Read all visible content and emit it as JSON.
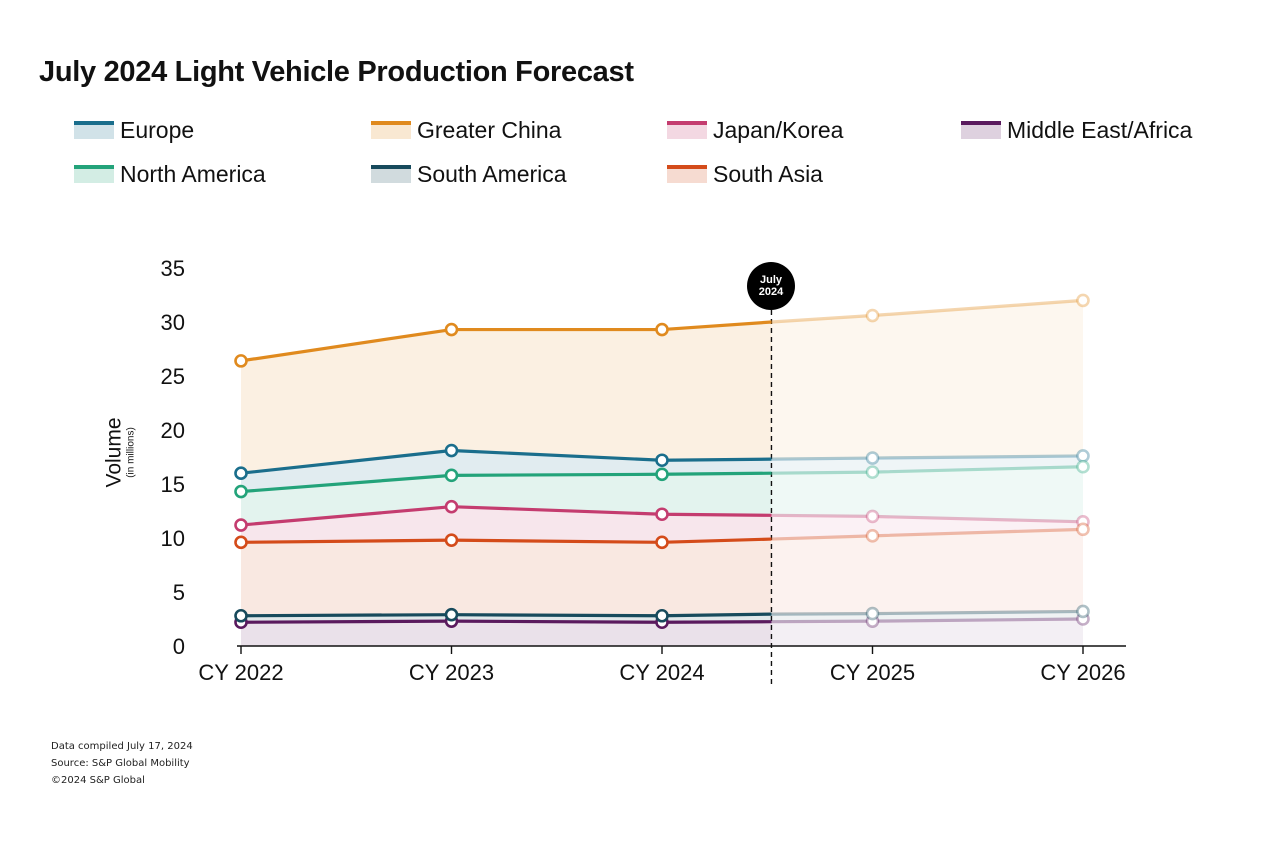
{
  "chart_data": {
    "type": "line",
    "title": "July 2024 Light Vehicle Production Forecast",
    "ylabel": "Volume",
    "ylabel_sub": "(in millions)",
    "xlabel": "",
    "categories": [
      "CY 2022",
      "CY 2023",
      "CY 2024",
      "CY 2025",
      "CY 2026"
    ],
    "ylim": [
      0,
      35
    ],
    "yticks": [
      0,
      5,
      10,
      15,
      20,
      25,
      30,
      35
    ],
    "forecast_marker": {
      "label_line1": "July",
      "label_line2": "2024",
      "x_value": 2.52
    },
    "legend_position": "top",
    "series": [
      {
        "name": "Europe",
        "color": "#1a6e8c",
        "values": [
          16.0,
          18.1,
          17.2,
          17.4,
          17.6
        ],
        "july_value": 17.3
      },
      {
        "name": "Greater China",
        "color": "#e08a1e",
        "values": [
          26.4,
          29.3,
          29.3,
          30.6,
          32.0
        ],
        "july_value": 30.0
      },
      {
        "name": "Japan/Korea",
        "color": "#c43c6f",
        "values": [
          11.2,
          12.9,
          12.2,
          12.0,
          11.5
        ],
        "july_value": 12.1
      },
      {
        "name": "Middle East/Africa",
        "color": "#5a1a5e",
        "values": [
          2.2,
          2.3,
          2.2,
          2.3,
          2.5
        ],
        "july_value": 2.25
      },
      {
        "name": "North America",
        "color": "#23a37a",
        "values": [
          14.3,
          15.8,
          15.9,
          16.1,
          16.6
        ],
        "july_value": 16.0
      },
      {
        "name": "South America",
        "color": "#174a5c",
        "values": [
          2.8,
          2.9,
          2.8,
          3.0,
          3.2
        ],
        "july_value": 2.95
      },
      {
        "name": "South Asia",
        "color": "#d44b1a",
        "values": [
          9.6,
          9.8,
          9.6,
          10.2,
          10.8
        ],
        "july_value": 9.9
      }
    ]
  },
  "footnotes": {
    "line1": "Data compiled July 17, 2024",
    "line2": "Source: S&P Global Mobility",
    "line3": "©2024 S&P Global"
  }
}
